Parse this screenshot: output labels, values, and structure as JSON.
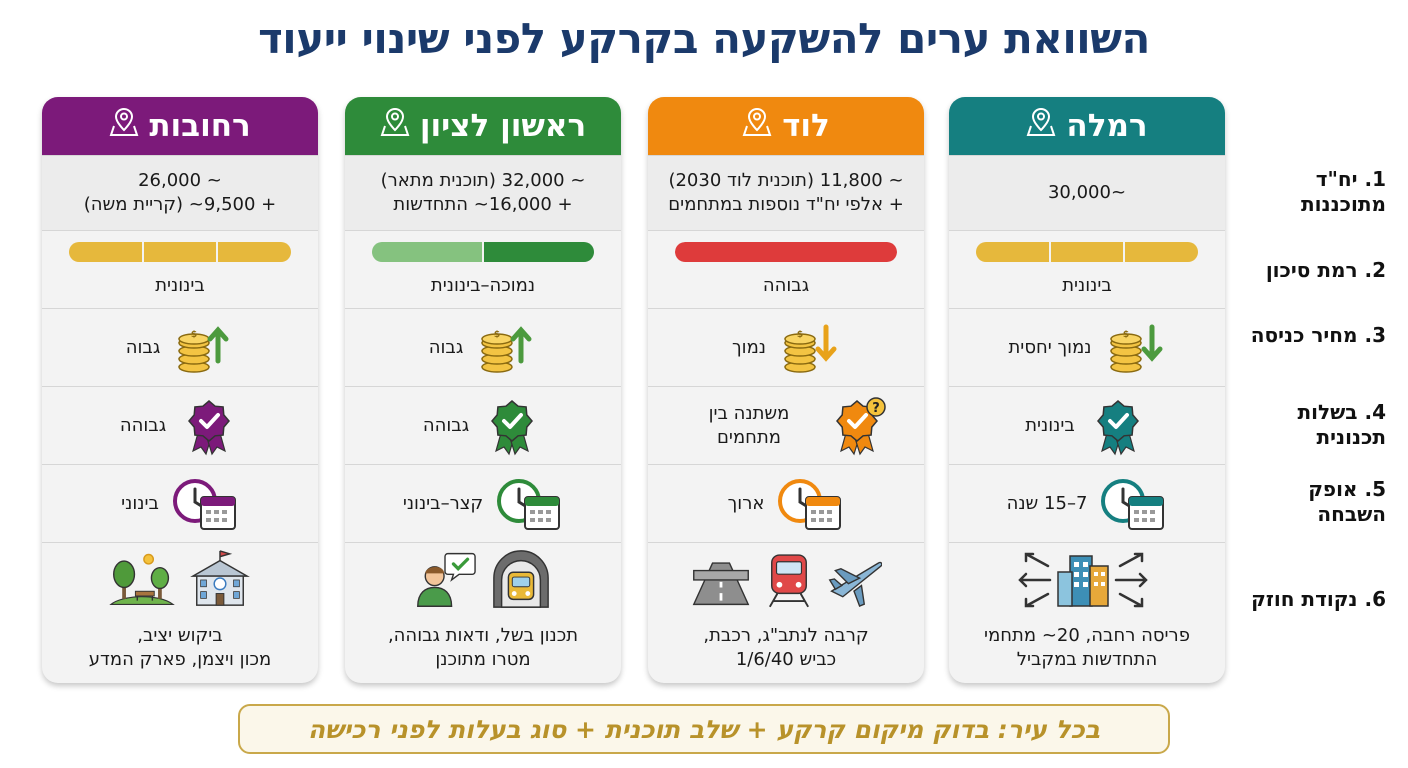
{
  "title": "השוואת ערים להשקעה בקרקע לפני שינוי ייעוד",
  "criteria": [
    {
      "n": "1.",
      "label": "יח\"ד מתוכננות"
    },
    {
      "n": "2.",
      "label": "רמת סיכון"
    },
    {
      "n": "3.",
      "label": "מחיר כניסה"
    },
    {
      "n": "4.",
      "label": "בשלות תכנונית"
    },
    {
      "n": "5.",
      "label": "אופק השבחה"
    },
    {
      "n": "6.",
      "label": "נקודת חוזק"
    }
  ],
  "cities": [
    {
      "name": "רמלה",
      "color": "#157f80",
      "units_line1": "~30,000",
      "units_line2": "",
      "risk": "בינונית",
      "risk_level": "medium",
      "price": "נמוך יחסית",
      "price_trend": "down",
      "maturity": "בינונית",
      "maturity_icon_color": "#157f80",
      "horizon": "7–15 שנה",
      "strength_line1": "פריסה רחבה, 20~ מתחמי",
      "strength_line2": "התחדשות במקביל",
      "strength_icons": [
        "expanding-buildings-icon"
      ]
    },
    {
      "name": "לוד",
      "color": "#f0890f",
      "units_line1": "~ 11,800 (תוכנית לוד 2030)",
      "units_line2": "+ אלפי יח\"ד נוספות במתחמים",
      "risk": "גבוהה",
      "risk_level": "high",
      "price": "נמוך",
      "price_trend": "down",
      "maturity": "משתנה בין מתחמים",
      "maturity_icon_color": "#f0890f",
      "horizon": "ארוך",
      "strength_line1": "קרבה לנתב\"ג, רכבת,",
      "strength_line2": "כביש 1/6/40",
      "strength_icons": [
        "airplane-icon",
        "train-icon",
        "highway-icon"
      ]
    },
    {
      "name": "ראשון לציון",
      "color": "#2e8b3a",
      "units_line1": "~ 32,000 (תוכנית מתאר)",
      "units_line2": "+ 16,000~ התחדשות",
      "risk": "נמוכה–בינונית",
      "risk_level": "low-medium",
      "price": "גבוה",
      "price_trend": "up",
      "maturity": "גבוהה",
      "maturity_icon_color": "#2e8b3a",
      "horizon": "קצר–בינוני",
      "strength_line1": "תכנון בשל, ודאות גבוהה,",
      "strength_line2": "מטרו מתוכנן",
      "strength_icons": [
        "metro-tunnel-icon",
        "approved-person-icon"
      ]
    },
    {
      "name": "רחובות",
      "color": "#7c1a7a",
      "units_line1": "~ 26,000",
      "units_line2": "+ 9,500~ (קריית משה)",
      "risk": "בינונית",
      "risk_level": "medium",
      "price": "גבוה",
      "price_trend": "up",
      "maturity": "גבוהה",
      "maturity_icon_color": "#7c1a7a",
      "horizon": "בינוני",
      "strength_line1": "ביקוש יציב,",
      "strength_line2": "מכון ויצמן, פארק המדע",
      "strength_icons": [
        "science-institute-icon",
        "park-icon"
      ]
    }
  ],
  "colors": {
    "risk_medium": "#e6b83c",
    "risk_high": "#de3b3b",
    "risk_low_dark": "#2e8b3a",
    "risk_low_light": "#85c27f"
  },
  "footer": "בכל עיר: בדוק מיקום קרקע + שלב תוכנית + סוג בעלות לפני רכישה"
}
